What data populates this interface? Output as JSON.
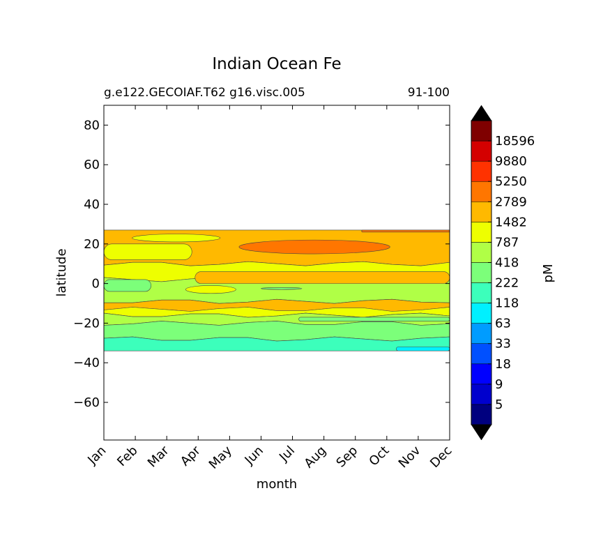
{
  "chart_data": {
    "type": "heatmap",
    "title": "Indian Ocean Fe",
    "subtitle_left": "g.e122.GECOIAF.T62 g16.visc.005",
    "subtitle_right": "91-100",
    "xlabel": "month",
    "ylabel": "latitude",
    "x_ticks": [
      "Jan",
      "Feb",
      "Mar",
      "Apr",
      "May",
      "Jun",
      "Jul",
      "Aug",
      "Sep",
      "Oct",
      "Nov",
      "Dec"
    ],
    "y_ticks": [
      80,
      60,
      40,
      20,
      0,
      -20,
      -40,
      -60
    ],
    "ylim": [
      -79,
      90
    ],
    "data_lat_range": [
      -34,
      27
    ],
    "grid": false,
    "colorbar": {
      "label": "pM",
      "placement": "right",
      "extend": "both",
      "levels": [
        "5",
        "9",
        "18",
        "33",
        "63",
        "118",
        "222",
        "418",
        "787",
        "1482",
        "2789",
        "5250",
        "9880",
        "18596"
      ],
      "colors": [
        "#00007f",
        "#0000cd",
        "#0000ff",
        "#0050ff",
        "#009cff",
        "#00f0ff",
        "#3cffbb",
        "#7cff7a",
        "#b0ff46",
        "#eeff00",
        "#ffb900",
        "#ff7600",
        "#ff3200",
        "#d40000",
        "#7f0000"
      ],
      "extend_color": "#000000"
    },
    "bands": [
      {
        "lat_from": 27,
        "lat_to": 10,
        "color": "#ffb900"
      },
      {
        "lat_from": 10,
        "lat_to": 2,
        "color": "#eeff00"
      },
      {
        "lat_from": 2,
        "lat_to": -9,
        "color": "#b0ff46"
      },
      {
        "lat_from": -9,
        "lat_to": -13,
        "color": "#ffb900"
      },
      {
        "lat_from": -13,
        "lat_to": -16,
        "color": "#eeff00"
      },
      {
        "lat_from": -16,
        "lat_to": -20,
        "color": "#b0ff46"
      },
      {
        "lat_from": -20,
        "lat_to": -28,
        "color": "#7cff7a"
      },
      {
        "lat_from": -28,
        "lat_to": -34,
        "color": "#3cffbb"
      }
    ],
    "features": [
      {
        "month_from": 0.0,
        "month_to": 2.8,
        "lat_from": 20,
        "lat_to": 12,
        "color": "#eeff00"
      },
      {
        "month_from": 0.9,
        "month_to": 3.7,
        "lat_from": 25,
        "lat_to": 21,
        "color": "#eeff00"
      },
      {
        "month_from": 4.3,
        "month_to": 9.1,
        "lat_from": 22,
        "lat_to": 15,
        "color": "#ff7600"
      },
      {
        "month_from": 8.2,
        "month_to": 11.0,
        "lat_from": 27,
        "lat_to": 26,
        "color": "#ff7600"
      },
      {
        "month_from": 2.9,
        "month_to": 11.0,
        "lat_from": 6,
        "lat_to": 0,
        "color": "#ffb900"
      },
      {
        "month_from": 0.0,
        "month_to": 1.5,
        "lat_from": 2,
        "lat_to": -4,
        "color": "#7cff7a"
      },
      {
        "month_from": 2.6,
        "month_to": 4.2,
        "lat_from": -1,
        "lat_to": -5,
        "color": "#eeff00"
      },
      {
        "month_from": 5.0,
        "month_to": 6.3,
        "lat_from": -2,
        "lat_to": -3,
        "color": "#7cff7a"
      },
      {
        "month_from": 6.2,
        "month_to": 11.0,
        "lat_from": -17,
        "lat_to": -19,
        "color": "#7cff7a"
      },
      {
        "month_from": 9.3,
        "month_to": 11.0,
        "lat_from": -32,
        "lat_to": -34,
        "color": "#00f0ff"
      }
    ]
  }
}
